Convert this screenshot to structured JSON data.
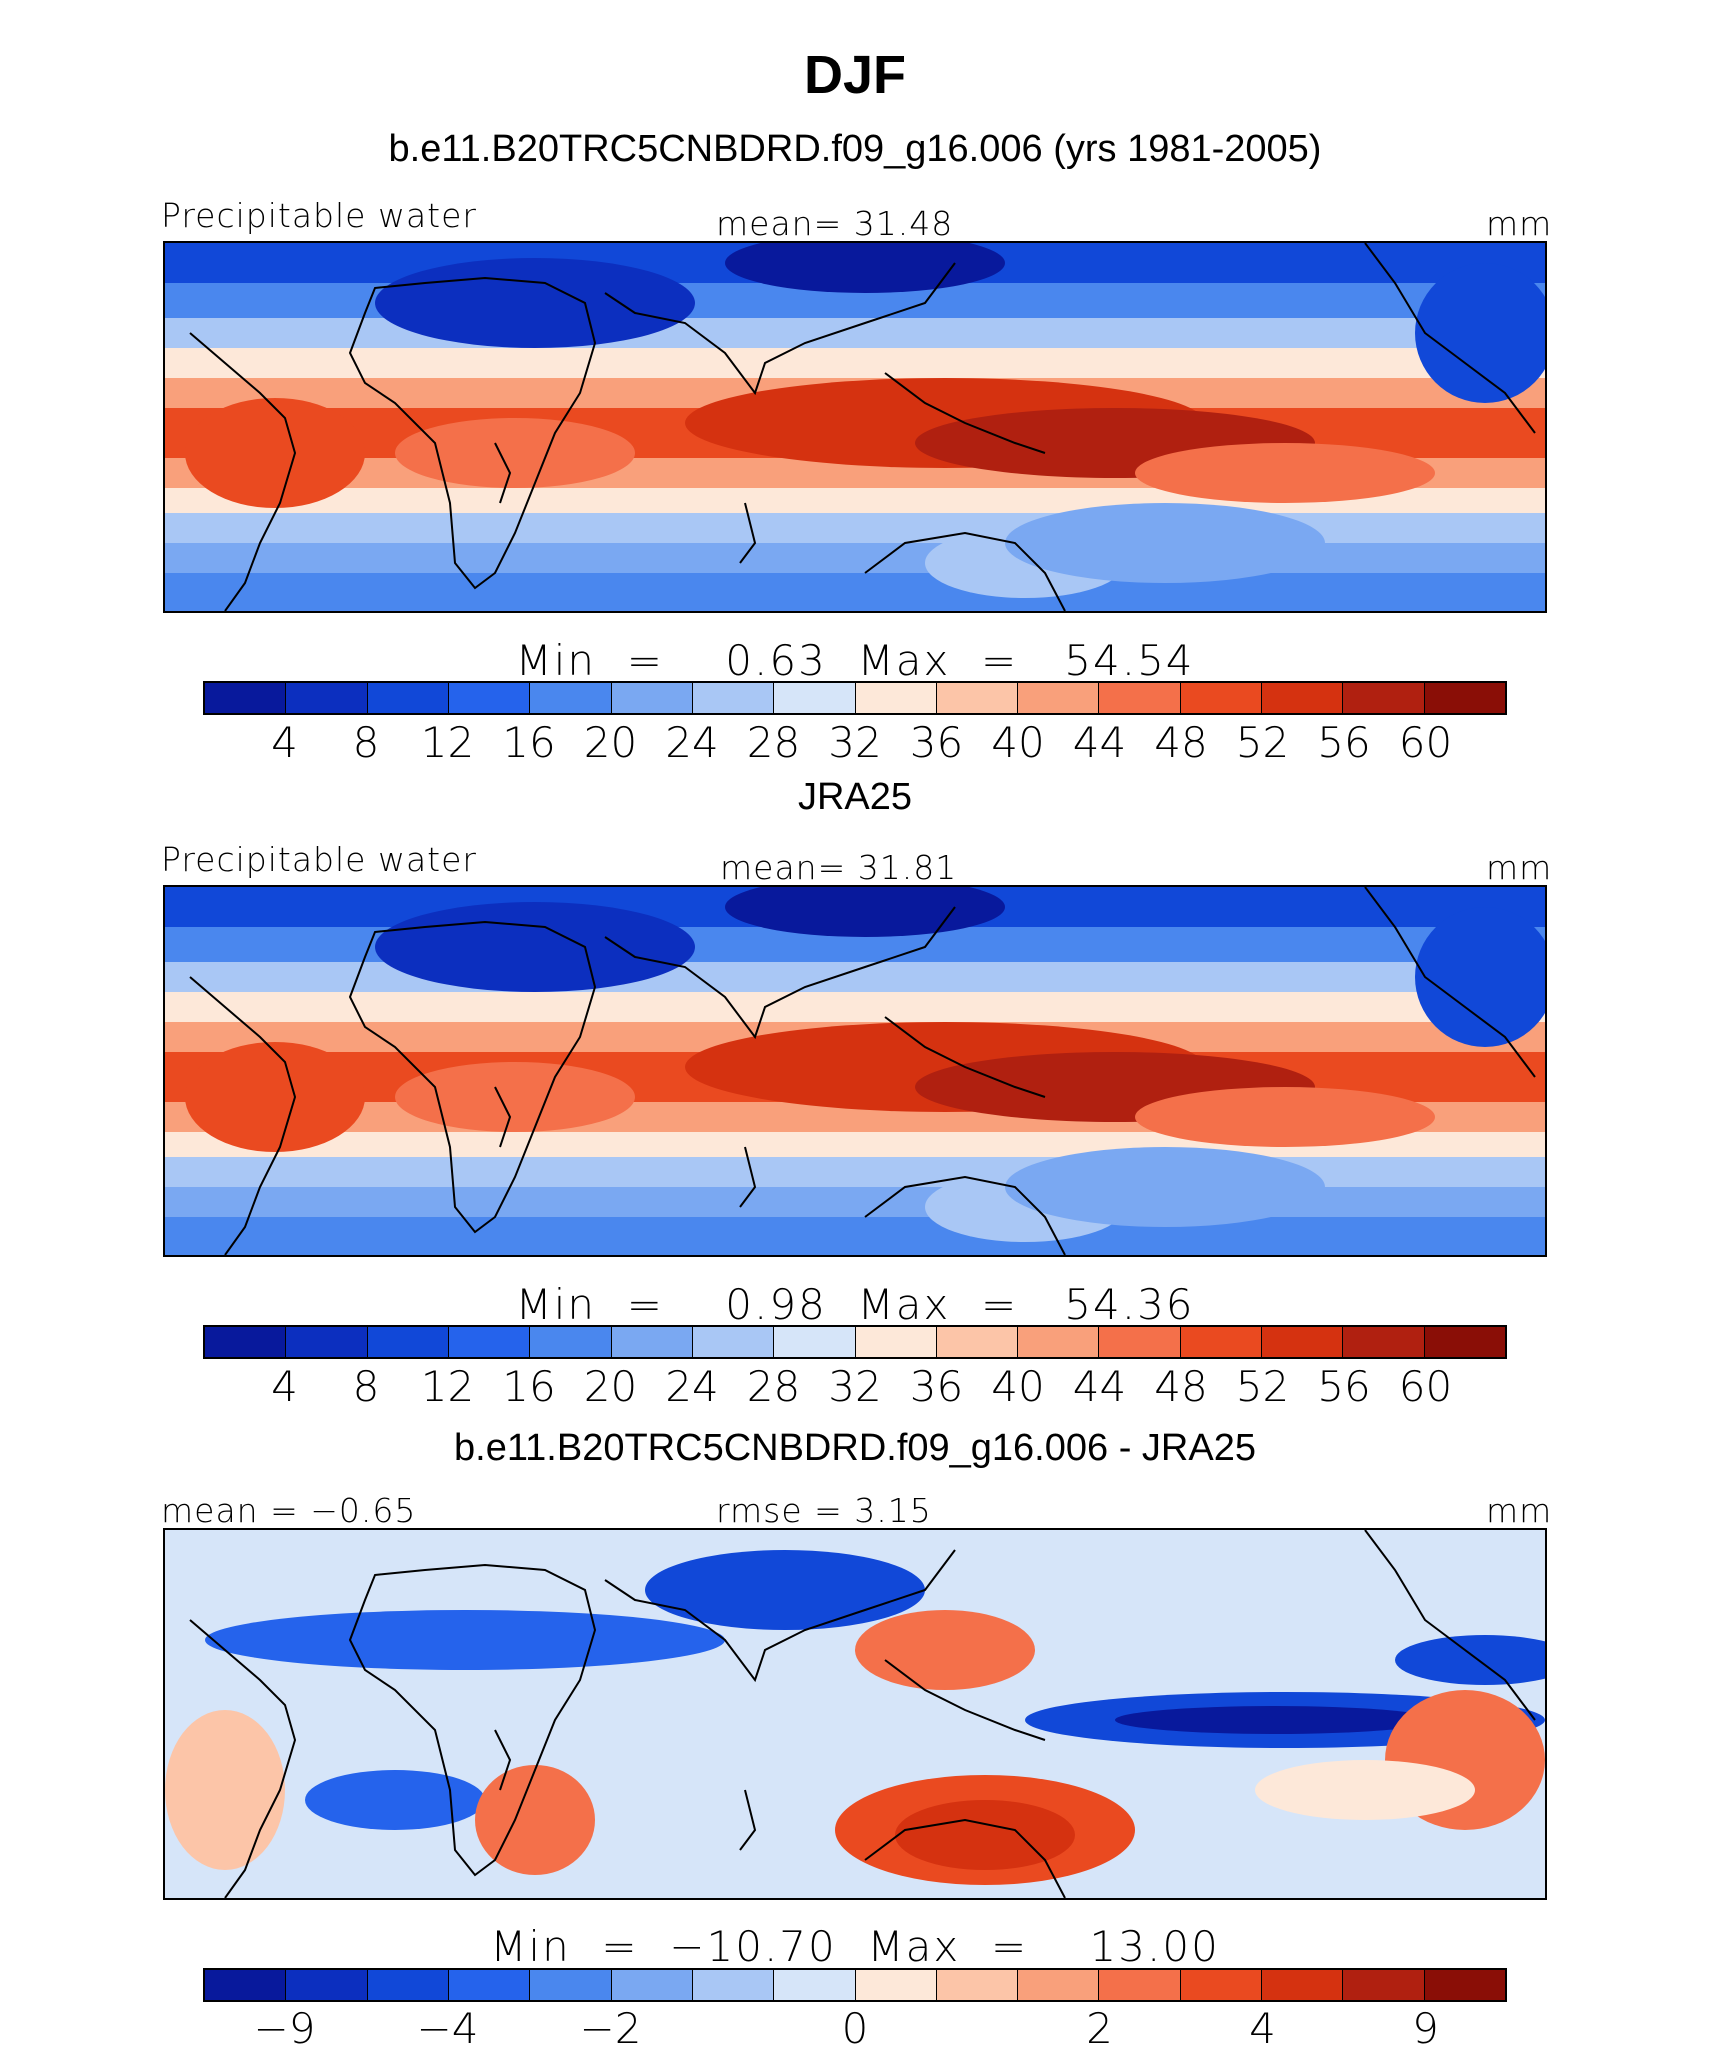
{
  "figure_title": "DJF",
  "palette": [
    "#08199c",
    "#0c2fbf",
    "#1148d8",
    "#2563ec",
    "#4a87ee",
    "#7aa8f2",
    "#a9c7f5",
    "#d6e5f9",
    "#fde8d9",
    "#fcc5a8",
    "#f9a07b",
    "#f4704a",
    "#ea4a20",
    "#d53210",
    "#b02010",
    "#8a0e06"
  ],
  "panels": [
    {
      "title": "b.e11.B20TRC5CNBDRD.f09_g16.006 (yrs 1981-2005)",
      "left_label": "Precipitable water",
      "center_label": "mean=   31.48",
      "right_label": "mm",
      "minmax": "Min  =    0.63  Max  =   54.54",
      "ticks": [
        "4",
        "8",
        "12",
        "16",
        "20",
        "24",
        "28",
        "32",
        "36",
        "40",
        "44",
        "48",
        "52",
        "56",
        "60"
      ],
      "map_type": "field"
    },
    {
      "title": "JRA25",
      "left_label": "Precipitable water",
      "center_label": "mean=   31.81",
      "right_label": "mm",
      "minmax": "Min  =    0.98  Max  =   54.36",
      "ticks": [
        "4",
        "8",
        "12",
        "16",
        "20",
        "24",
        "28",
        "32",
        "36",
        "40",
        "44",
        "48",
        "52",
        "56",
        "60"
      ],
      "map_type": "field"
    },
    {
      "title": "b.e11.B20TRC5CNBDRD.f09_g16.006 - JRA25",
      "left_label": "mean  =   −0.65",
      "center_label": "rmse  =      3.15",
      "right_label": "mm",
      "minmax": "Min  =  −10.70  Max  =    13.00",
      "ticks": [
        "−9",
        "−4",
        "−2",
        "0",
        "2",
        "4",
        "9"
      ],
      "map_type": "difference"
    }
  ]
}
